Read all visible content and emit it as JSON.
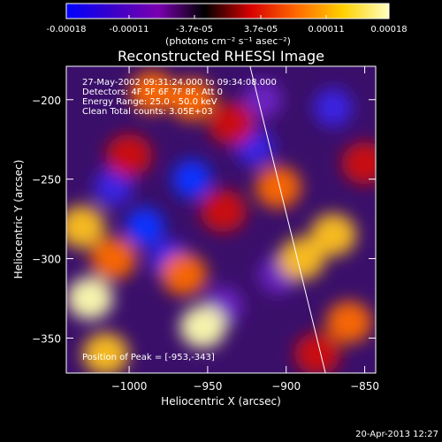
{
  "chart_data": {
    "type": "heatmap",
    "title": "Reconstructed RHESSI Image",
    "xlabel": "Heliocentric X (arcsec)",
    "ylabel": "Heliocentric Y (arcsec)",
    "xlim": [
      -1040,
      -843
    ],
    "ylim": [
      -372,
      -179
    ],
    "x_ticks": [
      -1000,
      -950,
      -900,
      -850
    ],
    "y_ticks": [
      -200,
      -250,
      -300,
      -350
    ],
    "colorbar": {
      "ticks": [
        "-0.00018",
        "-0.00011",
        "-3.7e-05",
        "3.7e-05",
        "0.00011",
        "0.00018"
      ],
      "tick_values": [
        -0.00018,
        -0.00011,
        -3.7e-05,
        3.7e-05,
        0.00011,
        0.00018
      ],
      "range": [
        -0.00018,
        0.00018
      ],
      "unit_label": "(photons cm⁻² s⁻¹ asec⁻²)",
      "palette": [
        "#0000ff",
        "#3a00c8",
        "#7a00b0",
        "#000000",
        "#d80000",
        "#ff6a00",
        "#ffd000",
        "#ffffc0"
      ]
    },
    "annotations": [
      "27-May-2002 09:31:24.000 to 09:34:08.000",
      "Detectors: 4F 5F 6F 7F 8F, Att 0",
      "Energy Range: 25.0 - 50.0 keV",
      "Clean    Total counts: 3.05E+03",
      "Position of Peak = [-953,-343]"
    ],
    "limb_line": {
      "x": [
        -923,
        -875
      ],
      "y": [
        -179,
        -372
      ]
    },
    "emission_sources": [
      {
        "x": -1025,
        "y": -325,
        "level": 0.9
      },
      {
        "x": -1030,
        "y": -280,
        "level": 0.8
      },
      {
        "x": -1015,
        "y": -360,
        "level": 0.85
      },
      {
        "x": -953,
        "y": -343,
        "level": 1.0
      },
      {
        "x": -965,
        "y": -310,
        "level": 0.6
      },
      {
        "x": -985,
        "y": -195,
        "level": 0.7
      },
      {
        "x": -960,
        "y": -200,
        "level": 0.65
      },
      {
        "x": -935,
        "y": -215,
        "level": 0.55
      },
      {
        "x": -905,
        "y": -255,
        "level": 0.6
      },
      {
        "x": -890,
        "y": -300,
        "level": 0.75
      },
      {
        "x": -870,
        "y": -285,
        "level": 0.85
      },
      {
        "x": -860,
        "y": -340,
        "level": 0.6
      },
      {
        "x": -880,
        "y": -360,
        "level": 0.55
      },
      {
        "x": -850,
        "y": -240,
        "level": 0.5
      },
      {
        "x": -1000,
        "y": -235,
        "level": 0.55
      },
      {
        "x": -940,
        "y": -270,
        "level": 0.35
      },
      {
        "x": -1010,
        "y": -300,
        "level": 0.65
      }
    ],
    "negative_sources": [
      {
        "x": -990,
        "y": -280,
        "level": -0.9
      },
      {
        "x": -960,
        "y": -250,
        "level": -0.95
      },
      {
        "x": -920,
        "y": -230,
        "level": -0.8
      },
      {
        "x": -940,
        "y": -330,
        "level": -0.7
      },
      {
        "x": -975,
        "y": -300,
        "level": -0.75
      },
      {
        "x": -905,
        "y": -310,
        "level": -0.7
      },
      {
        "x": -915,
        "y": -200,
        "level": -0.6
      },
      {
        "x": -1010,
        "y": -255,
        "level": -0.8
      },
      {
        "x": -870,
        "y": -205,
        "level": -0.85
      }
    ]
  },
  "timestamp": "20-Apr-2013 12:27"
}
